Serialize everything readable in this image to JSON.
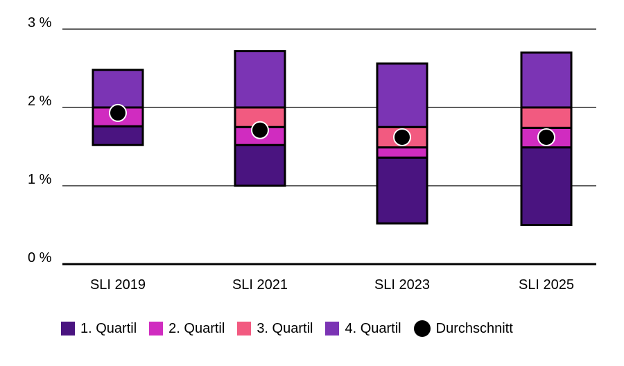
{
  "chart_data": {
    "type": "box",
    "categories": [
      "SLI 2019",
      "SLI 2021",
      "SLI 2023",
      "SLI 2025"
    ],
    "y_ticks": [
      {
        "value": 0,
        "label": "0 %"
      },
      {
        "value": 1,
        "label": "1 %"
      },
      {
        "value": 2,
        "label": "2 %"
      },
      {
        "value": 3,
        "label": "3 %"
      }
    ],
    "ylim": [
      0,
      3
    ],
    "grid": true,
    "boxes": [
      {
        "min": 1.52,
        "q1": 1.76,
        "median": 2.0,
        "q3": 2.0,
        "max": 2.48,
        "mean": 1.93
      },
      {
        "min": 1.0,
        "q1": 1.52,
        "median": 1.75,
        "q3": 2.0,
        "max": 2.72,
        "mean": 1.71
      },
      {
        "min": 0.52,
        "q1": 1.36,
        "median": 1.49,
        "q3": 1.75,
        "max": 2.56,
        "mean": 1.62
      },
      {
        "min": 0.5,
        "q1": 1.49,
        "median": 1.74,
        "q3": 2.0,
        "max": 2.7,
        "mean": 1.62
      }
    ],
    "legend_position": "bottom",
    "series": [
      {
        "name": "1. Quartil",
        "color": "#4a1480"
      },
      {
        "name": "2. Quartil",
        "color": "#d02cc0"
      },
      {
        "name": "3. Quartil",
        "color": "#f25a80"
      },
      {
        "name": "4. Quartil",
        "color": "#7b34b4"
      },
      {
        "name": "Durchschnitt",
        "color": "#000000"
      }
    ]
  }
}
